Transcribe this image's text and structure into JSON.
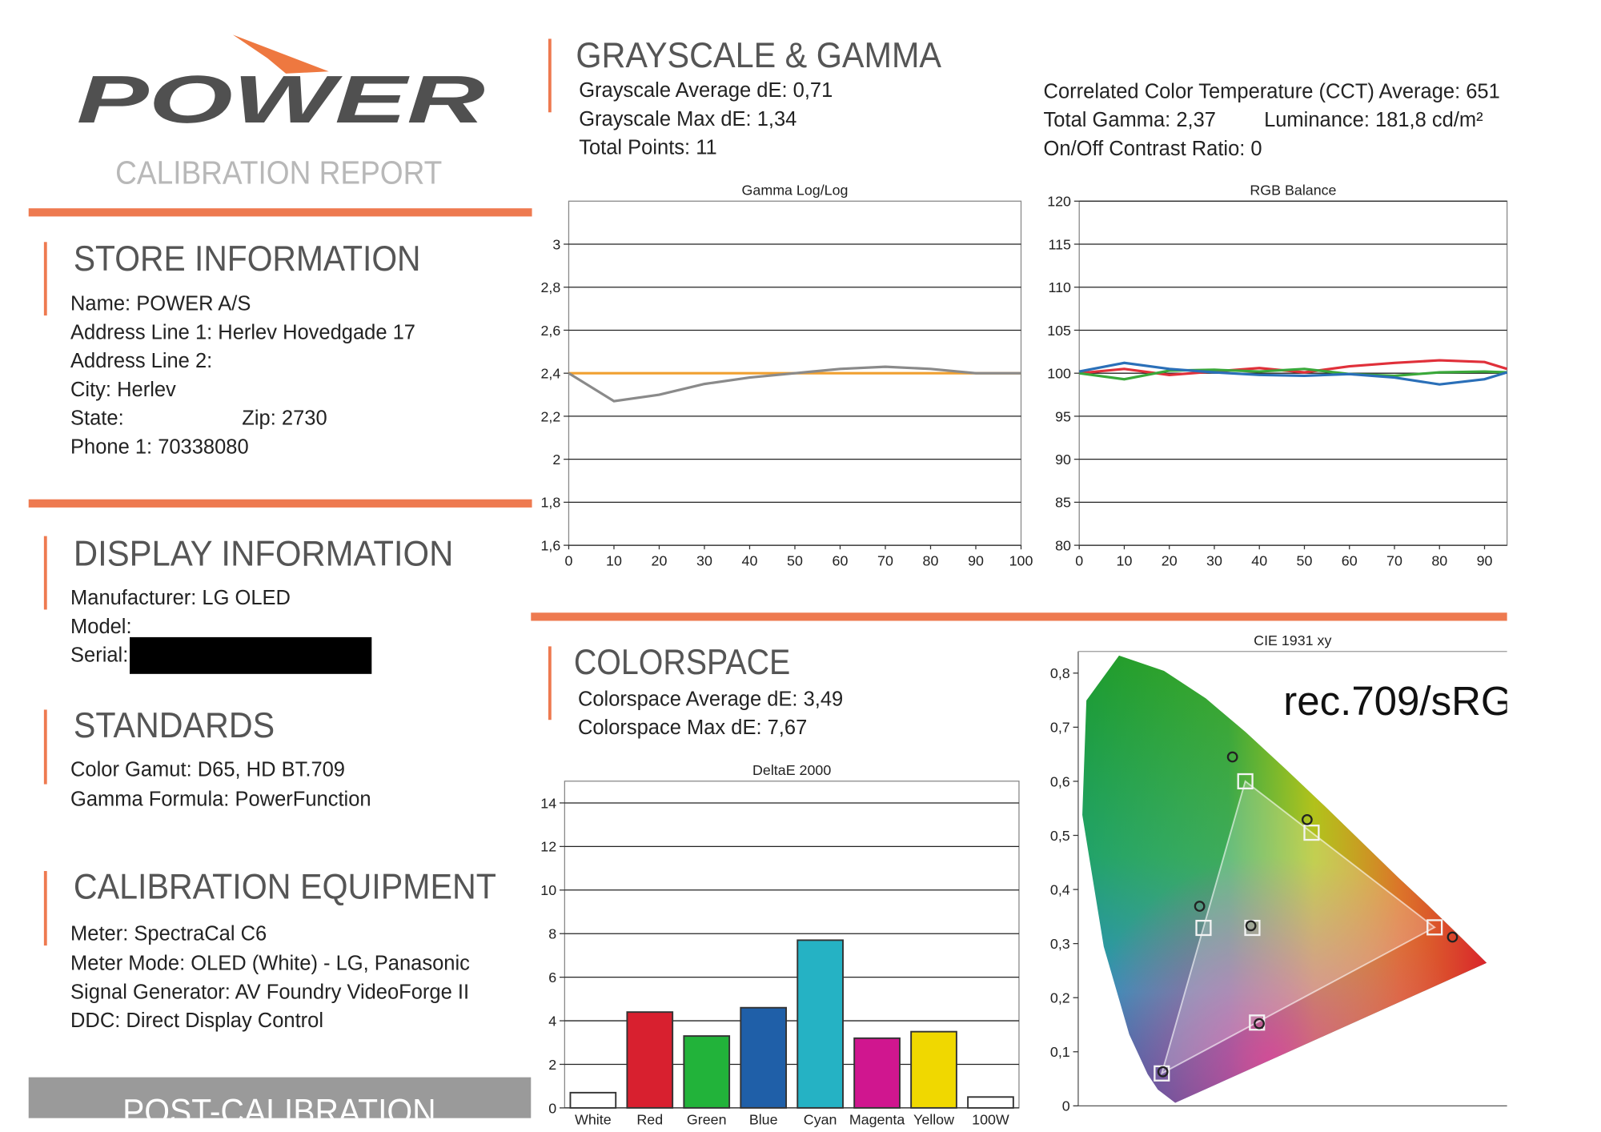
{
  "header": {
    "logo": "POWER",
    "subtitle": "CALIBRATION REPORT"
  },
  "store": {
    "title": "STORE INFORMATION",
    "lines": [
      "Name: POWER A/S",
      "Address Line 1: Herlev Hovedgade 17",
      "Address Line 2:",
      "City: Herlev",
      "State:",
      "Phone 1: 70338080"
    ],
    "zip": "Zip: 2730"
  },
  "display": {
    "title": "DISPLAY INFORMATION",
    "lines": [
      "Manufacturer: LG OLED",
      "Model:",
      "Serial:"
    ]
  },
  "standards": {
    "title": "STANDARDS",
    "lines": [
      "Color Gamut: D65, HD BT.709",
      "Gamma Formula: PowerFunction"
    ]
  },
  "equipment": {
    "title": "CALIBRATION EQUIPMENT",
    "lines": [
      "Meter: SpectraCal C6",
      "Meter Mode: OLED (White) - LG, Panasonic",
      "Signal Generator: AV Foundry VideoForge II",
      "DDC: Direct Display Control"
    ]
  },
  "footer": {
    "banner": "POST-CALIBRATION"
  },
  "grayscale": {
    "title": "GRAYSCALE & GAMMA",
    "left": [
      "Grayscale Average dE: 0,71",
      "Grayscale Max dE: 1,34",
      "Total Points: 11"
    ],
    "right": [
      "Correlated Color Temperature (CCT) Average: 651",
      "Total Gamma: 2,37",
      "On/Off Contrast Ratio: 0"
    ],
    "luminance": "Luminance: 181,8 cd/m²"
  },
  "colorspace": {
    "title": "COLORSPACE",
    "lines": [
      "Colorspace Average dE: 3,49",
      "Colorspace Max dE: 7,67"
    ]
  },
  "chart_data": [
    {
      "type": "line",
      "title": "Gamma Log/Log",
      "x": [
        0,
        10,
        20,
        30,
        40,
        50,
        60,
        70,
        80,
        90,
        100
      ],
      "series": [
        {
          "color": "#f0a030",
          "values": [
            2.4,
            2.4,
            2.4,
            2.4,
            2.4,
            2.4,
            2.4,
            2.4,
            2.4,
            2.4,
            2.4
          ]
        },
        {
          "color": "#8a8a8a",
          "values": [
            2.4,
            2.27,
            2.3,
            2.35,
            2.38,
            2.4,
            2.42,
            2.43,
            2.42,
            2.4,
            2.4
          ]
        }
      ],
      "xlim": [
        0,
        100
      ],
      "xticks": [
        0,
        10,
        20,
        30,
        40,
        50,
        60,
        70,
        80,
        90,
        100
      ],
      "ylim": [
        1.6,
        3.2
      ],
      "yticks": [
        {
          "value": 1.6,
          "label": "1,6"
        },
        {
          "value": 1.8,
          "label": "1,8"
        },
        2,
        {
          "value": 2.2,
          "label": "2,2"
        },
        {
          "value": 2.4,
          "label": "2,4"
        },
        {
          "value": 2.6,
          "label": "2,6"
        },
        {
          "value": 2.8,
          "label": "2,8"
        },
        3
      ],
      "grid": true
    },
    {
      "type": "line",
      "title": "RGB Balance",
      "x": [
        0,
        10,
        20,
        30,
        40,
        50,
        60,
        70,
        80,
        90,
        95
      ],
      "series": [
        {
          "color": "#e0303a",
          "values": [
            100,
            100.5,
            99.8,
            100.2,
            100.6,
            100.1,
            100.8,
            101.2,
            101.5,
            101.3,
            100.5
          ]
        },
        {
          "color": "#3aa83a",
          "values": [
            100,
            99.3,
            100.3,
            100.4,
            100.2,
            100.5,
            99.9,
            99.7,
            100.1,
            100.2,
            100.1
          ]
        },
        {
          "color": "#2a6fb8",
          "values": [
            100.2,
            101.2,
            100.5,
            100.1,
            99.8,
            99.7,
            99.9,
            99.5,
            98.7,
            99.3,
            100.1
          ]
        }
      ],
      "xlim": [
        0,
        95
      ],
      "xticks": [
        0,
        10,
        20,
        30,
        40,
        50,
        60,
        70,
        80,
        90
      ],
      "ylim": [
        80,
        120
      ],
      "yticks": [
        80,
        85,
        90,
        95,
        100,
        105,
        110,
        115,
        120
      ],
      "grid": true
    },
    {
      "type": "bar",
      "title": "DeltaE 2000",
      "categories": [
        "White",
        "Red",
        "Green",
        "Blue",
        "Cyan",
        "Magenta",
        "Yellow",
        "100W"
      ],
      "values": [
        0.7,
        4.4,
        3.3,
        4.6,
        7.7,
        3.2,
        3.5,
        0.5
      ],
      "colors": [
        "#ffffff",
        "#d8202f",
        "#22b33a",
        "#1f5fa8",
        "#25b2c4",
        "#d0168f",
        "#f0d800",
        "#ffffff"
      ],
      "ylim": [
        0,
        15
      ],
      "yticks": [
        0,
        2,
        4,
        6,
        8,
        10,
        12,
        14
      ],
      "grid": true
    },
    {
      "type": "scatter",
      "title": "CIE 1931 xy",
      "annotation": "rec.709/sRG",
      "xlim": [
        0,
        0.77
      ],
      "ylim": [
        0,
        0.84
      ],
      "yticks": [
        0,
        {
          "value": 0.1,
          "label": "0,1"
        },
        {
          "value": 0.2,
          "label": "0,2"
        },
        {
          "value": 0.3,
          "label": "0,3"
        },
        {
          "value": 0.4,
          "label": "0,4"
        },
        {
          "value": 0.5,
          "label": "0,5"
        },
        {
          "value": 0.6,
          "label": "0,6"
        },
        {
          "value": 0.7,
          "label": "0,7"
        },
        {
          "value": 0.8,
          "label": "0,8"
        }
      ],
      "grid": false,
      "series": [
        {
          "marker": "square",
          "color": "#f4f4f4",
          "x": [
            0.64,
            0.3,
            0.15,
            0.3127,
            0.225,
            0.321,
            0.419
          ],
          "values": [
            0.33,
            0.6,
            0.06,
            0.329,
            0.329,
            0.154,
            0.505
          ]
        },
        {
          "marker": "circle",
          "color": "#222222",
          "x": [
            0.672,
            0.277,
            0.152,
            0.31,
            0.218,
            0.325,
            0.411
          ],
          "values": [
            0.312,
            0.645,
            0.063,
            0.333,
            0.369,
            0.152,
            0.529
          ]
        }
      ]
    }
  ]
}
